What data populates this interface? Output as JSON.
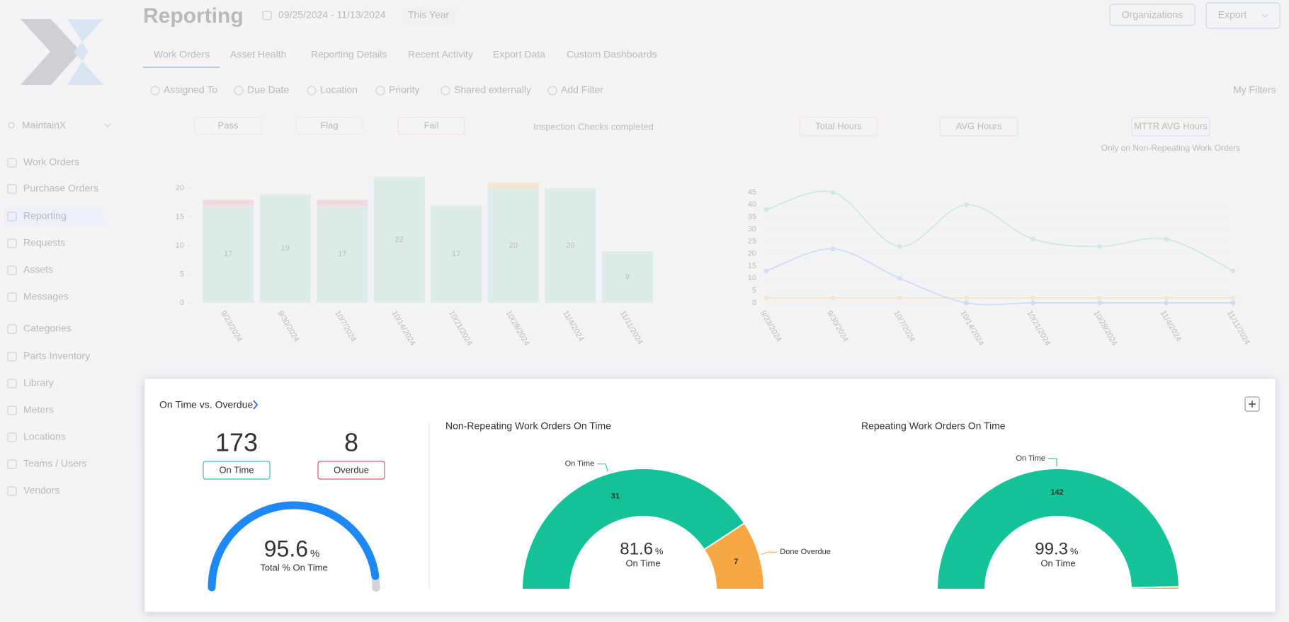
{
  "sidebar": {
    "workspace": "MaintainX",
    "nav": [
      "Work Orders",
      "Purchase Orders",
      "Reporting",
      "Requests",
      "Assets",
      "Messages",
      "Categories",
      "Parts Inventory",
      "Library",
      "Meters",
      "Locations",
      "Teams / Users",
      "Vendors"
    ]
  },
  "header": {
    "title": "Reporting",
    "date_range": "09/25/2024 - 11/13/2024",
    "period": "This Year",
    "organizations": "Organizations",
    "export": "Export"
  },
  "tabs": [
    "Work Orders",
    "Asset Health",
    "Reporting Details",
    "Recent Activity",
    "Export Data",
    "Custom Dashboards"
  ],
  "filters": [
    "Assigned To",
    "Due Date",
    "Location",
    "Priority",
    "Shared externally",
    "Add Filter"
  ],
  "my_filters": "My Filters",
  "inspection_chart": {
    "type": "bar",
    "note": "Inspection Checks completed",
    "categories": [
      "9/23/2024",
      "9/30/2024",
      "10/7/2024",
      "10/14/2024",
      "10/21/2024",
      "10/28/2024",
      "11/4/2024",
      "11/11/2024"
    ],
    "series": [
      {
        "name": "Pass",
        "color": "#a9dcc9",
        "values": [
          17,
          19,
          17,
          22,
          17,
          20,
          20,
          9
        ]
      },
      {
        "name": "Flag",
        "color": "#f7c98a",
        "values": [
          0,
          0,
          0,
          0,
          0,
          1,
          0,
          0
        ]
      },
      {
        "name": "Fail",
        "color": "#f29aa6",
        "values": [
          1,
          0,
          1,
          0,
          0,
          0,
          0,
          0
        ]
      }
    ],
    "ylim": [
      0,
      22
    ],
    "yticks": [
      0,
      5,
      10,
      15,
      20
    ]
  },
  "hours_chart": {
    "type": "line",
    "note": "Only on Non-Repeating Work Orders",
    "categories": [
      "9/23/2024",
      "9/30/2024",
      "10/7/2024",
      "10/14/2024",
      "10/21/2024",
      "10/28/2024",
      "11/4/2024",
      "11/11/2024"
    ],
    "series": [
      {
        "name": "Total Hours",
        "color": "#f5c36f",
        "values": [
          2,
          2,
          2,
          2,
          2,
          2,
          2,
          2
        ]
      },
      {
        "name": "AVG Hours",
        "color": "#7fcfb5",
        "values": [
          38,
          45,
          23,
          40,
          26,
          23,
          26,
          13
        ]
      },
      {
        "name": "MTTR AVG Hours",
        "color": "#8aa8f0",
        "values": [
          13,
          22,
          10,
          0,
          0,
          0,
          0,
          0
        ]
      }
    ],
    "ylim": [
      0,
      45
    ],
    "yticks": [
      0,
      5,
      10,
      15,
      20,
      25,
      30,
      35,
      40,
      45
    ]
  },
  "on_time_card": {
    "title": "On Time vs. Overdue",
    "stats": [
      {
        "value": 173,
        "label": "On Time"
      },
      {
        "value": 8,
        "label": "Overdue"
      }
    ],
    "gauge": {
      "value": 95.6,
      "unit": "%",
      "caption": "Total % On Time",
      "color": "#1e88f5"
    },
    "charts": [
      {
        "type": "pie",
        "title": "Non-Repeating Work Orders On Time",
        "categories": [
          "On Time",
          "Done Overdue"
        ],
        "values": [
          31,
          7
        ],
        "colors": [
          "#13c296",
          "#f7a845"
        ],
        "center_value": 81.6,
        "unit": "%",
        "center_caption": "On Time"
      },
      {
        "type": "pie",
        "title": "Repeating Work Orders On Time",
        "categories": [
          "On Time",
          null
        ],
        "values": [
          142,
          1
        ],
        "colors": [
          "#13c296",
          "#f7a845"
        ],
        "center_value": 99.3,
        "unit": "%",
        "center_caption": "On Time"
      }
    ]
  }
}
